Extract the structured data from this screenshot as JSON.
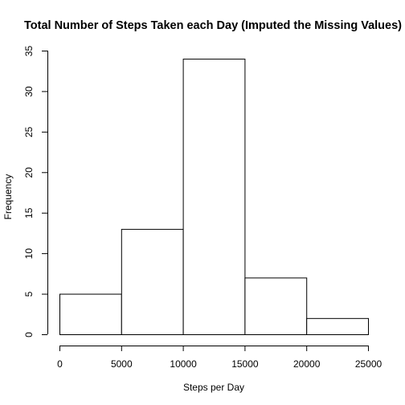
{
  "chart_data": {
    "type": "bar",
    "title": "Total Number of Steps Taken each Day (Imputed the Missing Values)",
    "xlabel": "Steps per Day",
    "ylabel": "Frequency",
    "bins": [
      {
        "from": 0,
        "to": 5000,
        "count": 5
      },
      {
        "from": 5000,
        "to": 10000,
        "count": 13
      },
      {
        "from": 10000,
        "to": 15000,
        "count": 34
      },
      {
        "from": 15000,
        "to": 20000,
        "count": 7
      },
      {
        "from": 20000,
        "to": 25000,
        "count": 2
      }
    ],
    "x_ticks": [
      "0",
      "5000",
      "10000",
      "15000",
      "20000",
      "25000"
    ],
    "y_ticks": [
      "0",
      "5",
      "10",
      "15",
      "20",
      "25",
      "30",
      "35"
    ],
    "xlim": [
      0,
      25000
    ],
    "ylim": [
      0,
      35
    ],
    "grid": false
  }
}
